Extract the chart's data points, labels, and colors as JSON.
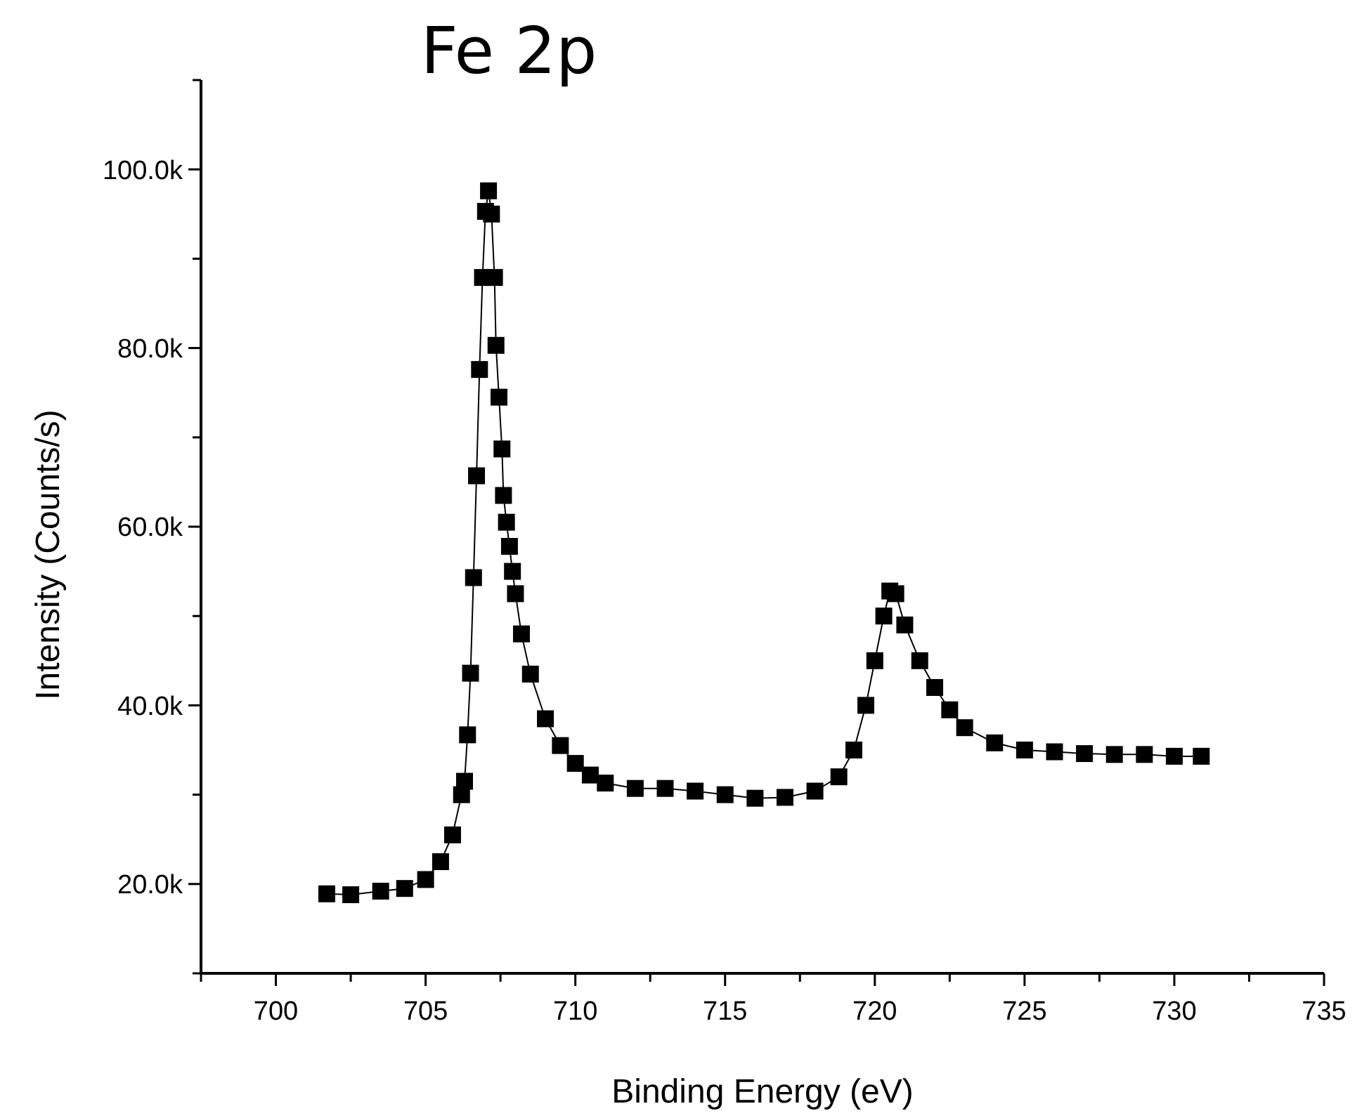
{
  "chart_data": {
    "type": "line",
    "title": "Fe 2p",
    "xlabel": "Binding Energy (eV)",
    "ylabel": "Intensity (Counts/s)",
    "xlim": [
      697.5,
      735
    ],
    "ylim": [
      10000,
      110000
    ],
    "xticks": [
      {
        "value": 697.5,
        "label": null
      },
      700,
      {
        "value": 702.5,
        "label": null
      },
      705,
      {
        "value": 707.5,
        "label": null
      },
      710,
      {
        "value": 712.5,
        "label": null
      },
      715,
      {
        "value": 717.5,
        "label": null
      },
      720,
      {
        "value": 722.5,
        "label": null
      },
      725,
      {
        "value": 727.5,
        "label": null
      },
      730,
      {
        "value": 732.5,
        "label": null
      },
      735
    ],
    "yticks": [
      {
        "value": 10000,
        "label": null
      },
      {
        "value": 20000,
        "label": "20.0k"
      },
      {
        "value": 30000,
        "label": null
      },
      {
        "value": 40000,
        "label": "40.0k"
      },
      {
        "value": 50000,
        "label": null
      },
      {
        "value": 60000,
        "label": "60.0k"
      },
      {
        "value": 70000,
        "label": null
      },
      {
        "value": 80000,
        "label": "80.0k"
      },
      {
        "value": 90000,
        "label": null
      },
      {
        "value": 100000,
        "label": "100.0k"
      },
      {
        "value": 110000,
        "label": null
      }
    ],
    "grid": false,
    "marker": "square",
    "line_style": "solid",
    "series": [
      {
        "color": "#000000",
        "x": [
          701.7,
          702.5,
          703.5,
          704.3,
          705,
          705.5,
          705.9,
          706.2,
          706.3,
          706.4,
          706.5,
          706.6,
          706.7,
          706.8,
          706.9,
          707,
          707.1,
          707.2,
          707.3,
          707.35,
          707.45,
          707.55,
          707.6,
          707.7,
          707.8,
          707.9,
          708,
          708.2,
          708.5,
          709,
          709.5,
          710,
          710.5,
          711,
          712,
          713,
          714,
          715,
          716,
          717,
          718,
          718.8,
          719.3,
          719.7,
          720,
          720.3,
          720.5,
          720.7,
          721,
          721.5,
          722,
          722.5,
          723,
          724,
          725,
          726,
          727,
          728,
          729,
          730,
          730.9
        ],
        "values": [
          18900,
          18800,
          19200,
          19500,
          20500,
          22500,
          25500,
          30000,
          31500,
          36700,
          43600,
          54300,
          65700,
          77600,
          87900,
          95300,
          97600,
          95000,
          87900,
          80300,
          74500,
          68700,
          63500,
          60500,
          57800,
          55000,
          52500,
          48000,
          43500,
          38500,
          35500,
          33500,
          32200,
          31300,
          30700,
          30700,
          30400,
          30000,
          29600,
          29700,
          30400,
          32000,
          35000,
          40000,
          45000,
          50000,
          52800,
          52500,
          49000,
          45000,
          42000,
          39500,
          37500,
          35800,
          35000,
          34800,
          34600,
          34500,
          34500,
          34300,
          34300
        ]
      }
    ]
  }
}
